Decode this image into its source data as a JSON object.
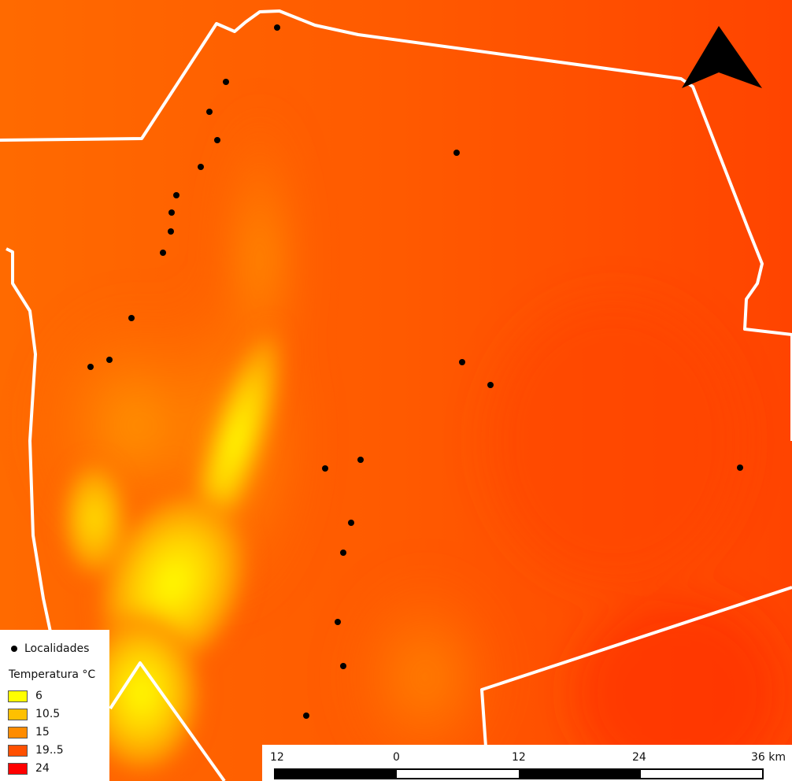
{
  "map": {
    "colors": {
      "hot": "#ff3d00",
      "warm": "#ff6a00",
      "mild": "#ff9a00",
      "cool": "#ffd300",
      "cold": "#ffff00",
      "border": "#ffffff",
      "points": "#000000"
    }
  },
  "north_arrow": {
    "icon": "north-arrow-icon"
  },
  "legend": {
    "points_label": "Localidades",
    "title": "Temperatura °C",
    "classes": [
      {
        "label": "6",
        "color": "#ffff00"
      },
      {
        "label": "10.5",
        "color": "#ffc000"
      },
      {
        "label": "15",
        "color": "#ff8c00"
      },
      {
        "label": "19..5",
        "color": "#ff5000"
      },
      {
        "label": "24",
        "color": "#ff0000"
      }
    ]
  },
  "scalebar": {
    "labels": [
      "12",
      "0",
      "12",
      "24",
      "36 km"
    ]
  }
}
